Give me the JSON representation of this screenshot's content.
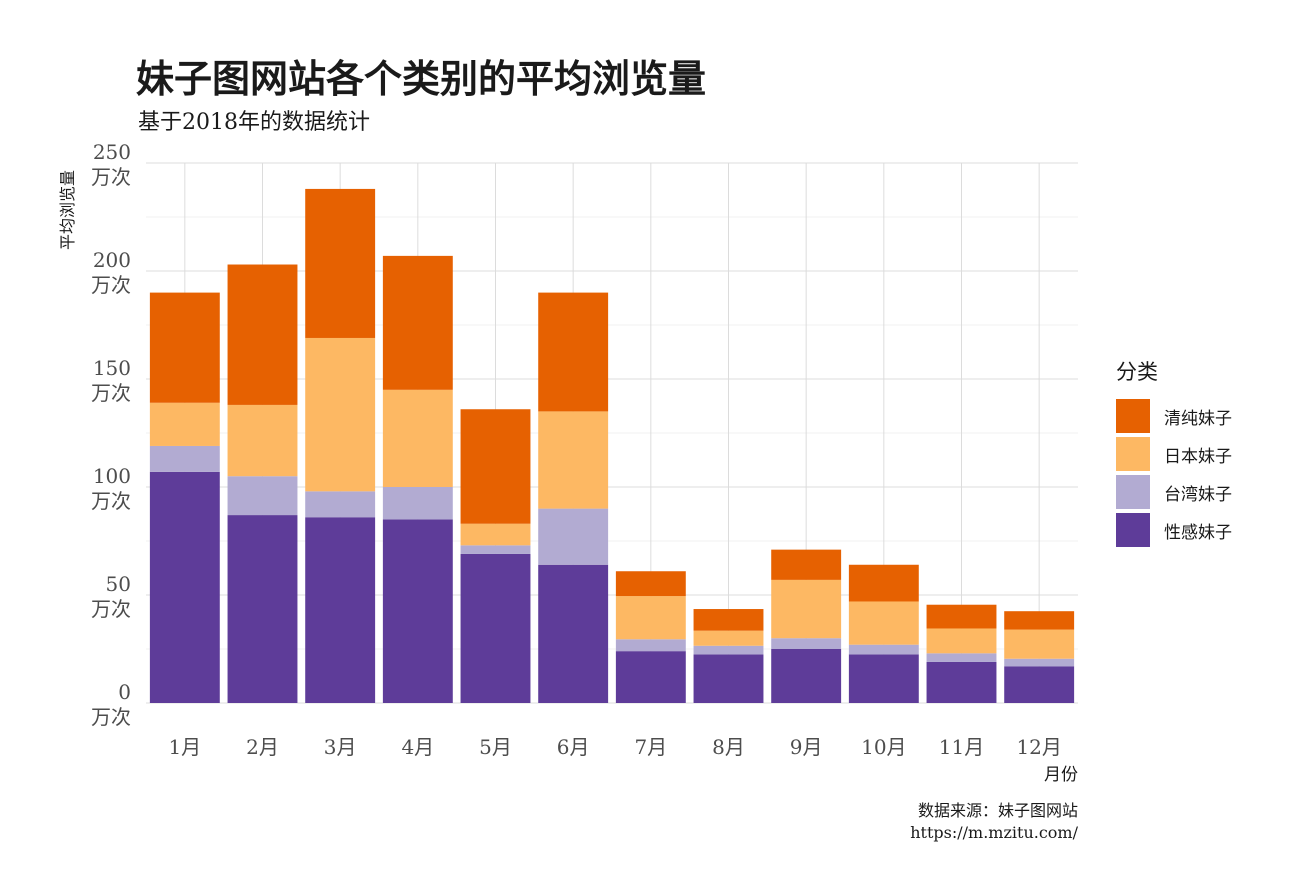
{
  "chart_data": {
    "type": "bar",
    "stacked": true,
    "title": "妹子图网站各个类别的平均浏览量",
    "subtitle": "基于2018年的数据统计",
    "xlabel": "月份",
    "ylabel": "平均浏览量",
    "categories": [
      "1月",
      "2月",
      "3月",
      "4月",
      "5月",
      "6月",
      "7月",
      "8月",
      "9月",
      "10月",
      "11月",
      "12月"
    ],
    "y_ticks": [
      {
        "value": 0,
        "line1": "0",
        "line2": "万次"
      },
      {
        "value": 50,
        "line1": "50",
        "line2": "万次"
      },
      {
        "value": 100,
        "line1": "100",
        "line2": "万次"
      },
      {
        "value": 150,
        "line1": "150",
        "line2": "万次"
      },
      {
        "value": 200,
        "line1": "200",
        "line2": "万次"
      },
      {
        "value": 250,
        "line1": "250",
        "line2": "万次"
      }
    ],
    "ylim": [
      0,
      250
    ],
    "grid": true,
    "legend_title": "分类",
    "legend_position": "right",
    "series": [
      {
        "name": "性感妹子",
        "color": "#5e3c99",
        "values": [
          107,
          87,
          86,
          85,
          69,
          64,
          24,
          22.5,
          25,
          22.5,
          19,
          17
        ]
      },
      {
        "name": "台湾妹子",
        "color": "#b2abd2",
        "values": [
          12,
          18,
          12,
          15,
          4,
          26,
          5.5,
          4,
          5,
          4.5,
          4,
          3.5
        ]
      },
      {
        "name": "日本妹子",
        "color": "#fdb863",
        "values": [
          20,
          33,
          71,
          45,
          10,
          45,
          20,
          7,
          27,
          20,
          11.5,
          13.5
        ]
      },
      {
        "name": "清纯妹子",
        "color": "#e66101",
        "values": [
          51,
          65,
          69,
          62,
          53,
          55,
          11.5,
          10,
          14,
          17,
          11,
          8.5
        ]
      }
    ],
    "caption_line1": "数据来源：妹子图网站",
    "caption_line2": "https://m.mzitu.com/"
  }
}
